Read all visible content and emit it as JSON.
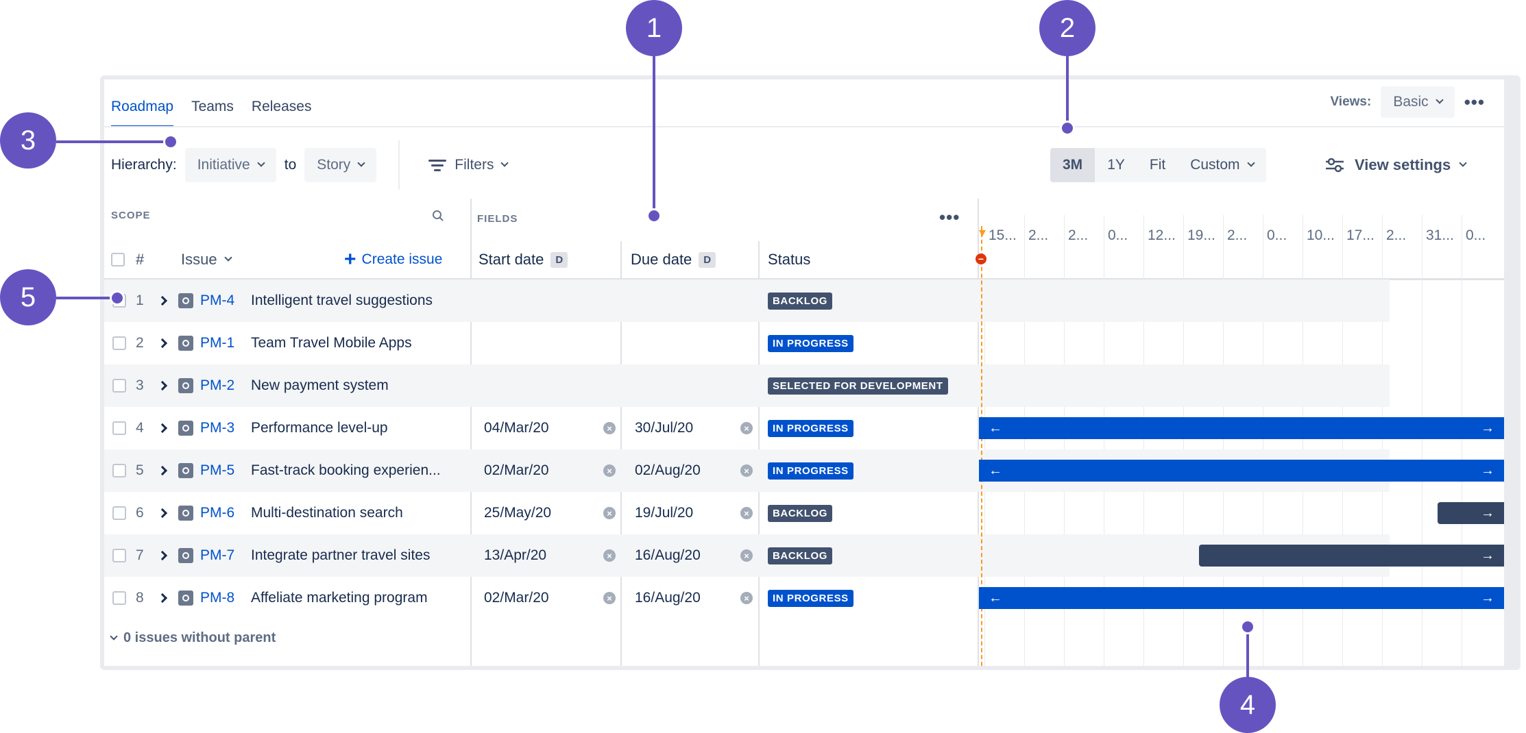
{
  "tabs": [
    {
      "label": "Roadmap",
      "active": true
    },
    {
      "label": "Teams",
      "active": false
    },
    {
      "label": "Releases",
      "active": false
    }
  ],
  "views": {
    "label": "Views:",
    "value": "Basic"
  },
  "toolbar": {
    "hierarchy_label": "Hierarchy:",
    "hierarchy_from": "Initiative",
    "to_label": "to",
    "hierarchy_to": "Story",
    "filters_label": "Filters",
    "ranges": [
      "3M",
      "1Y",
      "Fit",
      "Custom"
    ],
    "active_range": "3M",
    "view_settings_label": "View settings"
  },
  "scope": {
    "section_label": "SCOPE",
    "fields_label": "FIELDS",
    "col_rank": "#",
    "col_issue": "Issue",
    "create_issue": "Create issue",
    "col_start": "Start date",
    "col_due": "Due date",
    "date_badge": "D",
    "col_status": "Status",
    "footer": "0 issues without parent"
  },
  "issues": [
    {
      "rank": "1",
      "key": "PM-4",
      "title": "Intelligent travel suggestions",
      "start": "",
      "due": "",
      "status": "BACKLOG"
    },
    {
      "rank": "2",
      "key": "PM-1",
      "title": "Team Travel Mobile Apps",
      "start": "",
      "due": "",
      "status": "IN PROGRESS"
    },
    {
      "rank": "3",
      "key": "PM-2",
      "title": "New payment system",
      "start": "",
      "due": "",
      "status": "SELECTED FOR DEVELOPMENT"
    },
    {
      "rank": "4",
      "key": "PM-3",
      "title": "Performance level-up",
      "start": "04/Mar/20",
      "due": "30/Jul/20",
      "status": "IN PROGRESS"
    },
    {
      "rank": "5",
      "key": "PM-5",
      "title": "Fast-track booking experien...",
      "start": "02/Mar/20",
      "due": "02/Aug/20",
      "status": "IN PROGRESS"
    },
    {
      "rank": "6",
      "key": "PM-6",
      "title": "Multi-destination search",
      "start": "25/May/20",
      "due": "19/Jul/20",
      "status": "BACKLOG"
    },
    {
      "rank": "7",
      "key": "PM-7",
      "title": "Integrate partner travel sites",
      "start": "13/Apr/20",
      "due": "16/Aug/20",
      "status": "BACKLOG"
    },
    {
      "rank": "8",
      "key": "PM-8",
      "title": "Affeliate marketing program",
      "start": "02/Mar/20",
      "due": "16/Aug/20",
      "status": "IN PROGRESS"
    }
  ],
  "status_colors": {
    "BACKLOG": "#42526e",
    "IN PROGRESS": "#0052cc",
    "SELECTED FOR DEVELOPMENT": "#42526e"
  },
  "timeline": {
    "ticks": [
      "15...",
      "2...",
      "2...",
      "0...",
      "12...",
      "19...",
      "2...",
      "0...",
      "10...",
      "17...",
      "2...",
      "31...",
      "0..."
    ],
    "bar_colors": {
      "in_progress": "#0052cc",
      "backlog": "#344563"
    }
  },
  "callouts": [
    "1",
    "2",
    "3",
    "4",
    "5"
  ]
}
